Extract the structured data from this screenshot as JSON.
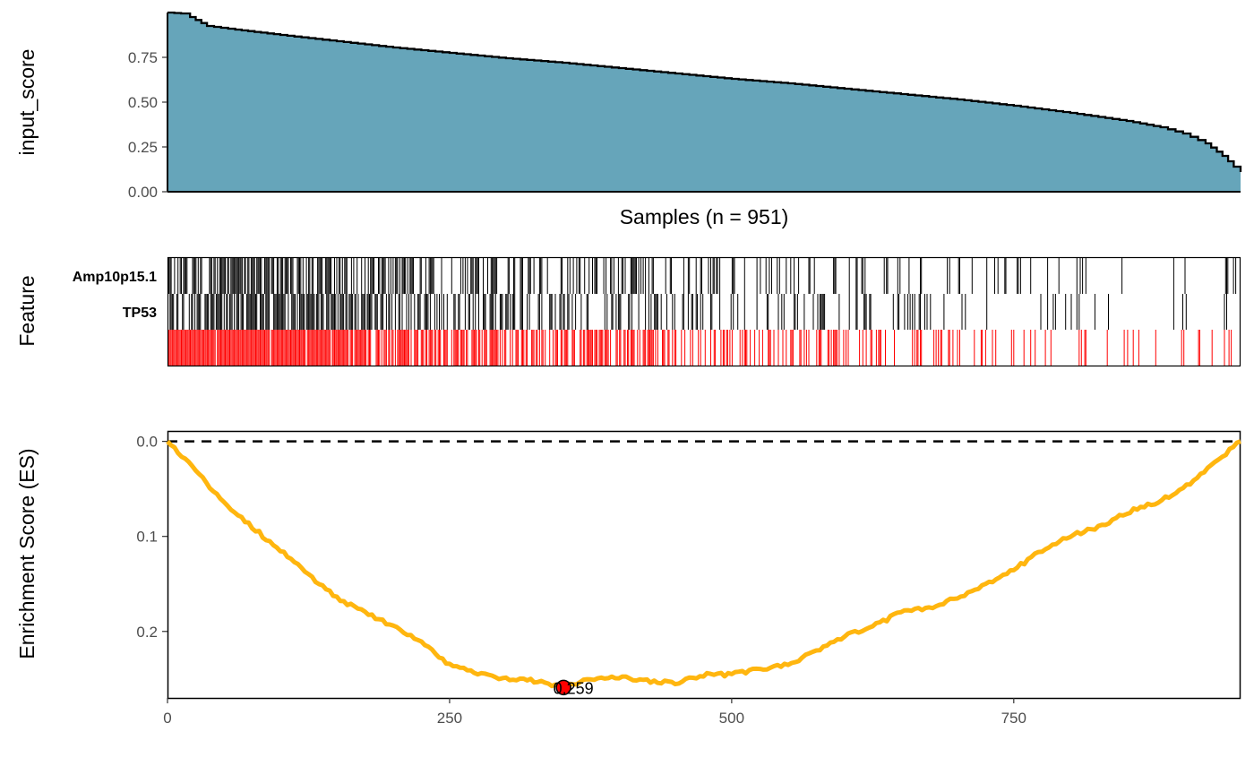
{
  "chart_data": [
    {
      "type": "area",
      "panel": "score",
      "ylabel": "input_score",
      "xlabel": "Samples (n = 951)",
      "n_samples": 951,
      "ylim": [
        0,
        1.0
      ],
      "yticks": [
        0.0,
        0.25,
        0.5,
        0.75
      ],
      "ytick_labels": [
        "0.00",
        "0.25",
        "0.50",
        "0.75"
      ],
      "fill_color": "#66A5BA",
      "curve": [
        [
          0,
          1.0
        ],
        [
          12,
          0.995
        ],
        [
          20,
          0.975
        ],
        [
          35,
          0.925
        ],
        [
          60,
          0.905
        ],
        [
          100,
          0.875
        ],
        [
          150,
          0.84
        ],
        [
          200,
          0.805
        ],
        [
          250,
          0.775
        ],
        [
          300,
          0.745
        ],
        [
          350,
          0.72
        ],
        [
          400,
          0.69
        ],
        [
          450,
          0.66
        ],
        [
          500,
          0.63
        ],
        [
          550,
          0.605
        ],
        [
          600,
          0.575
        ],
        [
          650,
          0.545
        ],
        [
          700,
          0.515
        ],
        [
          750,
          0.48
        ],
        [
          800,
          0.44
        ],
        [
          850,
          0.395
        ],
        [
          880,
          0.36
        ],
        [
          900,
          0.325
        ],
        [
          920,
          0.27
        ],
        [
          935,
          0.2
        ],
        [
          945,
          0.14
        ],
        [
          951,
          0.11
        ]
      ],
      "grid": false
    },
    {
      "type": "heatmap",
      "panel": "features",
      "ylabel": "Feature",
      "rows": [
        {
          "label": "Amp10p15.1",
          "color": "#000000",
          "density": [
            0.65,
            0.45,
            0.3,
            0.2,
            0.14,
            0.08
          ]
        },
        {
          "label": "TP53",
          "color": "#000000",
          "density": [
            0.7,
            0.5,
            0.35,
            0.22,
            0.15,
            0.08
          ]
        },
        {
          "label": "",
          "color": "#FF0000",
          "density": [
            0.95,
            0.7,
            0.5,
            0.35,
            0.22,
            0.12
          ]
        }
      ],
      "density_bins_note_count": 6
    },
    {
      "type": "line",
      "panel": "enrichment",
      "ylabel": "Enrichment Score (ES)",
      "xticks": [
        0,
        250,
        500,
        750
      ],
      "xtick_labels": [
        "0",
        "250",
        "500",
        "750"
      ],
      "yticks": [
        0.0,
        0.1,
        0.2
      ],
      "ytick_labels": [
        "0.0",
        "0.1",
        "0.2"
      ],
      "ylim_reversed": [
        -0.01,
        0.27
      ],
      "line_color": "#FFB60F",
      "x": [
        0,
        25,
        50,
        75,
        100,
        125,
        150,
        175,
        200,
        225,
        250,
        275,
        300,
        325,
        350,
        375,
        400,
        425,
        450,
        475,
        500,
        525,
        550,
        575,
        600,
        625,
        650,
        675,
        700,
        725,
        750,
        775,
        800,
        825,
        850,
        875,
        900,
        925,
        951
      ],
      "y": [
        0.0,
        0.03,
        0.065,
        0.09,
        0.115,
        0.14,
        0.165,
        0.18,
        0.195,
        0.21,
        0.235,
        0.245,
        0.25,
        0.252,
        0.259,
        0.25,
        0.248,
        0.252,
        0.254,
        0.246,
        0.245,
        0.24,
        0.235,
        0.22,
        0.205,
        0.195,
        0.18,
        0.175,
        0.165,
        0.15,
        0.135,
        0.115,
        0.1,
        0.09,
        0.075,
        0.065,
        0.05,
        0.025,
        0.0
      ],
      "reference_line": 0.0,
      "extreme": {
        "x": 351,
        "y": 0.259,
        "label": "0.259",
        "color": "#FF0000"
      }
    }
  ]
}
